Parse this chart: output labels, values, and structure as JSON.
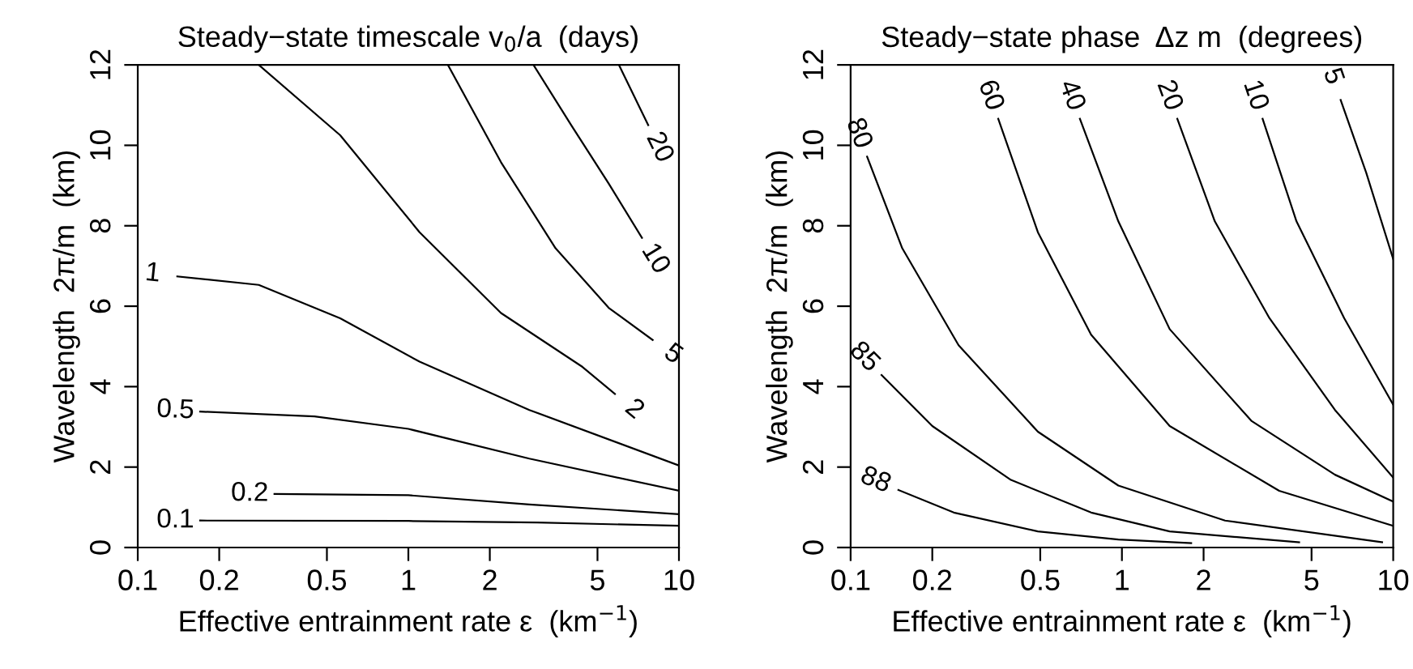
{
  "chart_data": [
    {
      "type": "line",
      "title": "Steady−state timescale v$_{0}$/a  (days)",
      "xlabel": "Effective entrainment rate ε  (km$^{−1}$)",
      "ylabel": "Wavelength  2π/m  (km)",
      "log": "x",
      "grid": false,
      "legend": false,
      "marker": "none",
      "line_style": "solid",
      "xlim": [
        0.1,
        10
      ],
      "xticks": [
        0.1,
        0.2,
        0.5,
        1,
        2,
        5,
        10
      ],
      "ylim": [
        0,
        12
      ],
      "yticks": [
        0,
        2,
        4,
        6,
        8,
        10,
        12
      ],
      "series": [
        {
          "color": "#000000",
          "x": [
            0.17,
            1,
            3,
            10
          ],
          "values": [
            0.67,
            0.66,
            0.62,
            0.54
          ]
        },
        {
          "color": "#000000",
          "x": [
            0.32,
            1,
            2.8,
            10
          ],
          "values": [
            1.33,
            1.3,
            1.07,
            0.83
          ]
        },
        {
          "color": "#000000",
          "x": [
            0.17,
            0.45,
            1,
            2.8,
            10
          ],
          "values": [
            3.38,
            3.26,
            2.95,
            2.21,
            1.41
          ]
        },
        {
          "color": "#000000",
          "x": [
            0.14,
            0.28,
            0.56,
            1.1,
            2.8,
            10
          ],
          "values": [
            6.74,
            6.53,
            5.7,
            4.62,
            3.42,
            2.04
          ]
        },
        {
          "color": "#000000",
          "x": [
            5.8,
            4.4,
            2.2,
            1.1,
            0.56,
            0.28
          ],
          "values": [
            3.82,
            4.49,
            5.83,
            7.84,
            10.25,
            12
          ]
        },
        {
          "color": "#000000",
          "x": [
            8.0,
            5.5,
            3.5,
            2.2,
            1.4
          ],
          "values": [
            5.16,
            5.96,
            7.44,
            9.58,
            12
          ]
        },
        {
          "color": "#000000",
          "x": [
            7.3,
            5.5,
            4.0,
            2.9
          ],
          "values": [
            7.7,
            9.05,
            10.5,
            12
          ]
        },
        {
          "color": "#000000",
          "x": [
            7.7,
            6.0
          ],
          "values": [
            10.5,
            12
          ]
        }
      ],
      "annotations": [
        {
          "text": "0.1",
          "x": 0.17,
          "y": 0.67
        },
        {
          "text": "0.2",
          "x": 0.32,
          "y": 1.33
        },
        {
          "text": "0.5",
          "x": 0.17,
          "y": 3.38
        },
        {
          "text": "1",
          "x": 0.14,
          "y": 6.74
        },
        {
          "text": "2",
          "x": 5.8,
          "y": 3.82
        },
        {
          "text": "5",
          "x": 8.0,
          "y": 5.16
        },
        {
          "text": "10",
          "x": 7.3,
          "y": 7.7
        },
        {
          "text": "20",
          "x": 7.7,
          "y": 10.5
        }
      ]
    },
    {
      "type": "line",
      "title": "Steady−state phase  Δz m  (degrees)",
      "xlabel": "Effective entrainment rate ε  (km$^{−1}$)",
      "ylabel": "Wavelength  2π/m  (km)",
      "log": "x",
      "grid": false,
      "legend": false,
      "marker": "none",
      "line_style": "solid",
      "xlim": [
        0.1,
        10
      ],
      "xticks": [
        0.1,
        0.2,
        0.5,
        1,
        2,
        5,
        10
      ],
      "ylim": [
        0,
        12
      ],
      "yticks": [
        0,
        2,
        4,
        6,
        8,
        10,
        12
      ],
      "series": [
        {
          "color": "#000000",
          "x": [
            0.15,
            0.24,
            0.49,
            0.97,
            1.8
          ],
          "values": [
            1.43,
            0.87,
            0.4,
            0.2,
            0.11
          ]
        },
        {
          "color": "#000000",
          "x": [
            0.13,
            0.2,
            0.39,
            0.77,
            1.5,
            4.5
          ],
          "values": [
            4.29,
            3.02,
            1.68,
            0.87,
            0.4,
            0.13
          ]
        },
        {
          "color": "#000000",
          "x": [
            0.115,
            0.155,
            0.25,
            0.49,
            0.97,
            2.4,
            9.1
          ],
          "values": [
            9.72,
            7.44,
            5.03,
            2.88,
            1.54,
            0.67,
            0.13
          ]
        },
        {
          "color": "#000000",
          "x": [
            0.35,
            0.49,
            0.77,
            1.5,
            3.8,
            10
          ],
          "values": [
            10.66,
            7.84,
            5.29,
            3.02,
            1.41,
            0.54
          ]
        },
        {
          "color": "#000000",
          "x": [
            0.7,
            0.97,
            1.5,
            3.0,
            6.1,
            10
          ],
          "values": [
            10.66,
            8.11,
            5.43,
            3.15,
            1.81,
            1.14
          ]
        },
        {
          "color": "#000000",
          "x": [
            1.6,
            2.2,
            3.5,
            6.1,
            10
          ],
          "values": [
            10.66,
            8.11,
            5.7,
            3.42,
            1.74
          ]
        },
        {
          "color": "#000000",
          "x": [
            3.3,
            4.4,
            6.6,
            10
          ],
          "values": [
            10.66,
            8.11,
            5.7,
            3.55
          ]
        },
        {
          "color": "#000000",
          "x": [
            6.4,
            7.95,
            10
          ],
          "values": [
            11.13,
            9.32,
            7.17
          ]
        }
      ],
      "annotations": [
        {
          "text": "88",
          "x": 0.15,
          "y": 1.43
        },
        {
          "text": "85",
          "x": 0.13,
          "y": 4.29
        },
        {
          "text": "80",
          "x": 0.115,
          "y": 9.72
        },
        {
          "text": "60",
          "x": 0.35,
          "y": 10.66
        },
        {
          "text": "40",
          "x": 0.7,
          "y": 10.66
        },
        {
          "text": "20",
          "x": 1.6,
          "y": 10.66
        },
        {
          "text": "10",
          "x": 3.3,
          "y": 10.66
        },
        {
          "text": "5",
          "x": 6.4,
          "y": 11.13
        }
      ]
    }
  ]
}
